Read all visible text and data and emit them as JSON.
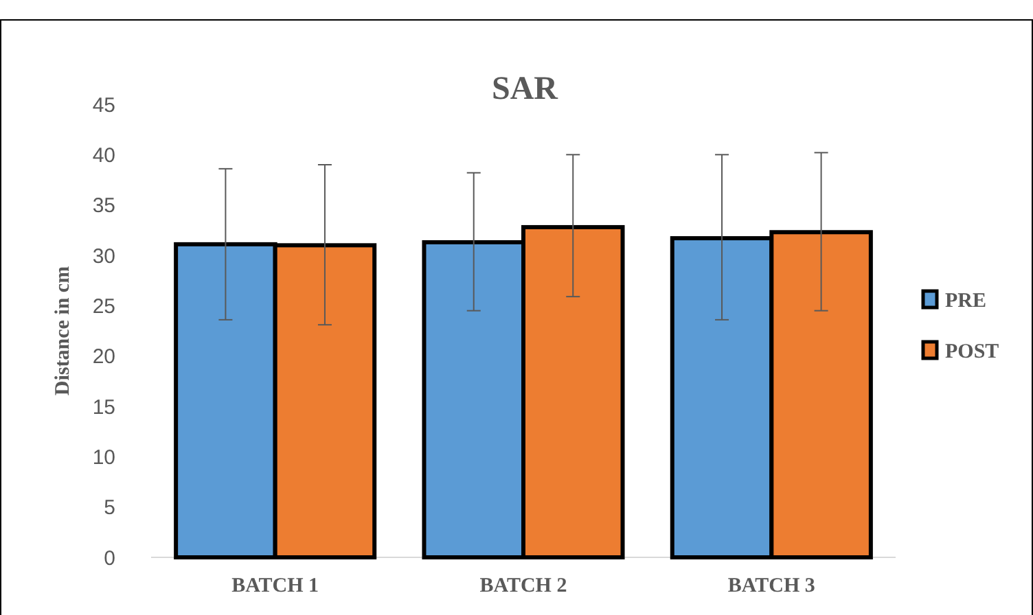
{
  "chart_data": {
    "type": "bar",
    "title": "SAR",
    "ylabel": "Distance in cm",
    "categories": [
      "BATCH 1",
      "BATCH 2",
      "BATCH 3"
    ],
    "series": [
      {
        "name": "PRE",
        "color": "#5b9bd5",
        "values": [
          31.1,
          31.3,
          31.7
        ],
        "errors": [
          [
            23.6,
            38.6
          ],
          [
            24.5,
            38.2
          ],
          [
            23.6,
            40.0
          ]
        ]
      },
      {
        "name": "POST",
        "color": "#ed7d31",
        "values": [
          31.0,
          32.8,
          32.3
        ],
        "errors": [
          [
            23.1,
            39.0
          ],
          [
            25.9,
            40.0
          ],
          [
            24.5,
            40.2
          ]
        ]
      }
    ],
    "ylim": [
      0,
      45
    ],
    "yticks": [
      0,
      5,
      10,
      15,
      20,
      25,
      30,
      35,
      40,
      45
    ],
    "grid": false,
    "legend": "right"
  }
}
